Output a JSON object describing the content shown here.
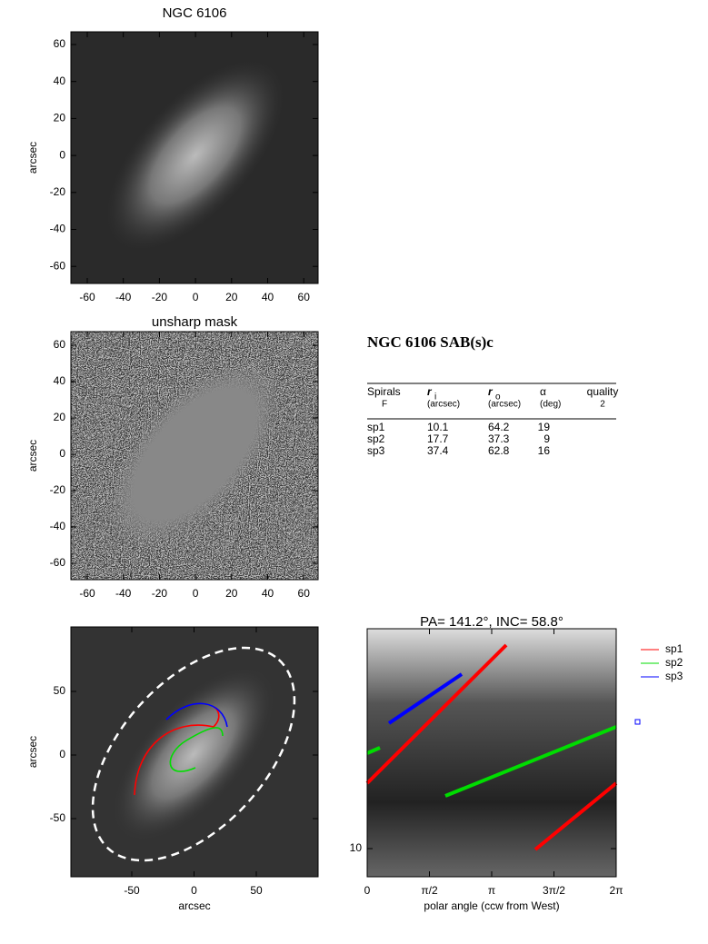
{
  "panels": [
    {
      "title": "NGC 6106",
      "ylabel": "arcsec",
      "xticks": [
        "-60",
        "-40",
        "-20",
        "0",
        "20",
        "40",
        "60"
      ],
      "yticks": [
        "60",
        "40",
        "20",
        "0",
        "-20",
        "-40",
        "-60"
      ]
    },
    {
      "title": "unsharp mask",
      "ylabel": "arcsec",
      "xticks": [
        "-60",
        "-40",
        "-20",
        "0",
        "20",
        "40",
        "60"
      ],
      "yticks": [
        "60",
        "40",
        "20",
        "0",
        "-20",
        "-40",
        "-60"
      ]
    },
    {
      "xlabel": "arcsec",
      "ylabel": "arcsec",
      "xticks": [
        "-50",
        "0",
        "50"
      ],
      "yticks": [
        "50",
        "0",
        "-50"
      ]
    },
    {
      "title": "PA= 141.2°, INC= 58.8°",
      "xlabel": "polar angle (ccw from West)",
      "xticks": [
        "0",
        "π/2",
        "π",
        "3π/2",
        "2π"
      ],
      "yticks": [
        "10"
      ],
      "legend": [
        {
          "name": "sp1",
          "color": "#ff0000"
        },
        {
          "name": "sp2",
          "color": "#00dd00"
        },
        {
          "name": "sp3",
          "color": "#0000ff"
        }
      ]
    }
  ],
  "table": {
    "title": "NGC 6106  SAB(s)c",
    "columns": [
      {
        "name": "Spirals",
        "sub": "F"
      },
      {
        "name": "r",
        "subscript": "i",
        "sub": "(arcsec)"
      },
      {
        "name": "r",
        "subscript": "o",
        "sub": "(arcsec)"
      },
      {
        "name": "α",
        "sub": "(deg)"
      },
      {
        "name": "quality",
        "sub": "2"
      }
    ],
    "rows": [
      [
        "sp1",
        10.1,
        64.2,
        19
      ],
      [
        "sp2",
        17.7,
        37.3,
        9
      ],
      [
        "sp3",
        37.4,
        62.8,
        16
      ]
    ]
  }
}
